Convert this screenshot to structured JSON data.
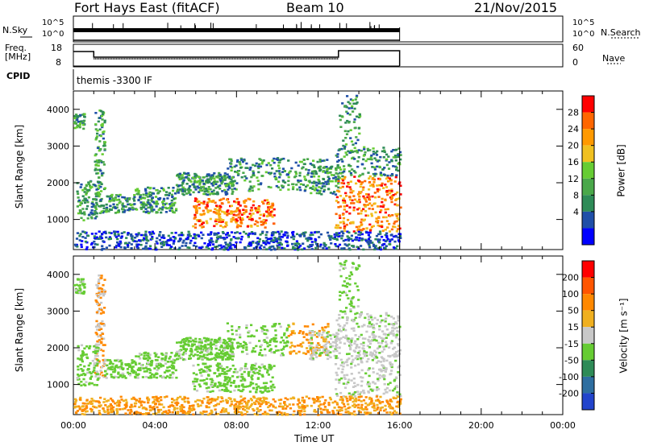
{
  "header": {
    "station": "Fort Hays East (fitACF)",
    "beam": "Beam 10",
    "date": "21/Nov/2015"
  },
  "summary": {
    "nsky_label": "N.Sky",
    "nsky_ticks": [
      "10^5",
      "10^0"
    ],
    "nsearch_label": "N.Search",
    "nsearch_ticks": [
      "10^5",
      "10^0"
    ],
    "freq_label_1": "Freq.",
    "freq_label_2": "[MHz]",
    "freq_ticks": [
      "18",
      "8"
    ],
    "nave_label": "Nave",
    "nave_ticks": [
      "60",
      "0"
    ],
    "cpid_label": "CPID",
    "cpid_value": "themis -3300 IF"
  },
  "colors": {
    "power": [
      "#0000ff",
      "#1f4fa8",
      "#2e8b57",
      "#4aa84a",
      "#66cc33",
      "#f0c020",
      "#ff9900",
      "#ff6600",
      "#ff0000"
    ],
    "velocity": [
      "#2244cc",
      "#2e6ea0",
      "#2e8b57",
      "#66cc33",
      "#c8c8c8",
      "#f0b020",
      "#ff8800",
      "#ff5500",
      "#ff0000"
    ]
  },
  "chart_data": [
    {
      "type": "heatmap",
      "name": "power-panel",
      "ylabel": "Slant Range [km]",
      "yticks": [
        "4000",
        "3000",
        "2000",
        "1000"
      ],
      "ylim": [
        180,
        4500
      ],
      "xlim": [
        0,
        24
      ],
      "data_end_hour": 16,
      "colorbar_label": "Power [dB]",
      "colorbar_ticks": [
        "28",
        "24",
        "20",
        "16",
        "12",
        "8",
        "4"
      ]
    },
    {
      "type": "heatmap",
      "name": "velocity-panel",
      "ylabel": "Slant Range [km]",
      "yticks": [
        "4000",
        "3000",
        "2000",
        "1000"
      ],
      "ylim": [
        180,
        4500
      ],
      "xlim": [
        0,
        24
      ],
      "data_end_hour": 16,
      "colorbar_label": "Velocity [m s⁻¹]",
      "colorbar_ticks": [
        "200",
        "100",
        "50",
        "15",
        "-15",
        "-50",
        "-100",
        "-200"
      ]
    }
  ],
  "xaxis": {
    "ticks": [
      "00:00",
      "04:00",
      "08:00",
      "12:00",
      "16:00",
      "20:00",
      "00:00"
    ],
    "label": "Time UT"
  }
}
